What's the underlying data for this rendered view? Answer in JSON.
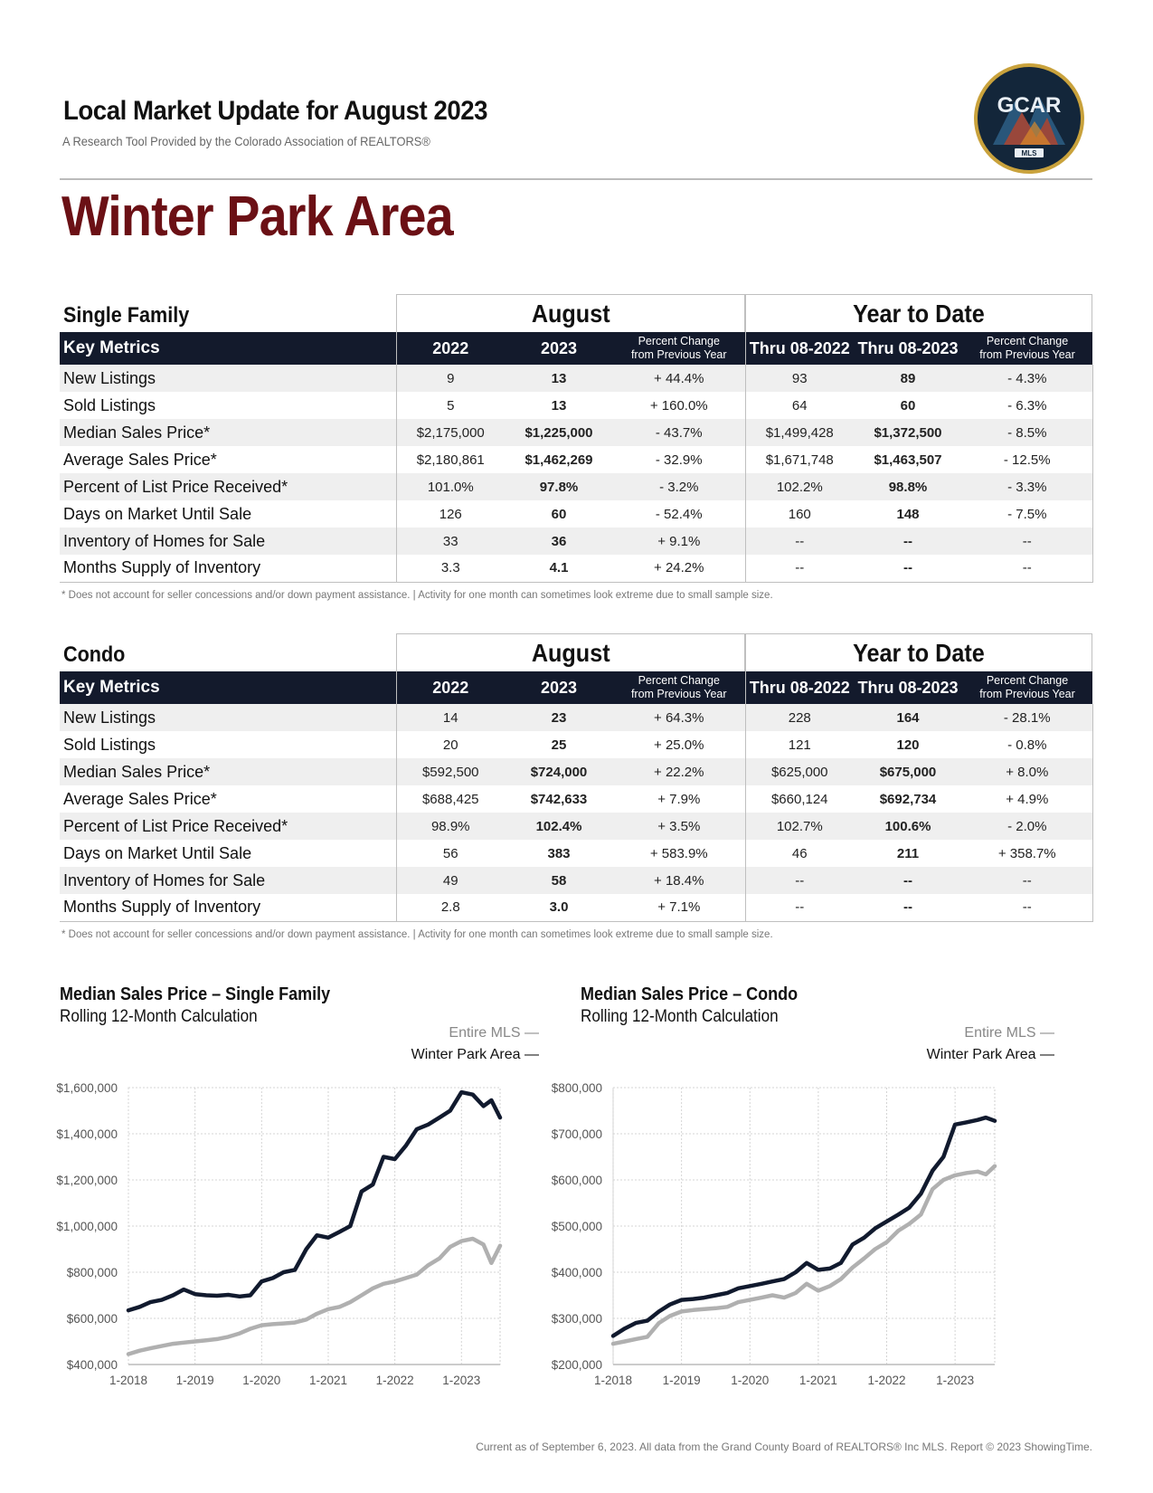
{
  "header": {
    "title": "Local Market Update for August 2023",
    "subtitle": "A Research Tool Provided by the Colorado Association of REALTORS®",
    "logo_text": "GCAR",
    "logo_sub": "MLS"
  },
  "area": "Winter Park Area",
  "columns": {
    "key_metrics": "Key Metrics",
    "y2022": "2022",
    "y2023": "2023",
    "pct_line1": "Percent Change",
    "pct_line2": "from Previous Year",
    "thru2022": "Thru 08-2022",
    "thru2023": "Thru 08-2023"
  },
  "sections": [
    {
      "label": "Single Family",
      "month": "August",
      "ytd": "Year to Date",
      "rows": [
        {
          "metric": "New Listings",
          "m2022": "9",
          "m2023": "13",
          "mpct": "+ 44.4%",
          "y2022": "93",
          "y2023": "89",
          "ypct": "- 4.3%"
        },
        {
          "metric": "Sold Listings",
          "m2022": "5",
          "m2023": "13",
          "mpct": "+ 160.0%",
          "y2022": "64",
          "y2023": "60",
          "ypct": "- 6.3%"
        },
        {
          "metric": "Median Sales Price*",
          "m2022": "$2,175,000",
          "m2023": "$1,225,000",
          "mpct": "- 43.7%",
          "y2022": "$1,499,428",
          "y2023": "$1,372,500",
          "ypct": "- 8.5%"
        },
        {
          "metric": "Average Sales Price*",
          "m2022": "$2,180,861",
          "m2023": "$1,462,269",
          "mpct": "- 32.9%",
          "y2022": "$1,671,748",
          "y2023": "$1,463,507",
          "ypct": "- 12.5%"
        },
        {
          "metric": "Percent of List Price Received*",
          "m2022": "101.0%",
          "m2023": "97.8%",
          "mpct": "- 3.2%",
          "y2022": "102.2%",
          "y2023": "98.8%",
          "ypct": "- 3.3%"
        },
        {
          "metric": "Days on Market Until Sale",
          "m2022": "126",
          "m2023": "60",
          "mpct": "- 52.4%",
          "y2022": "160",
          "y2023": "148",
          "ypct": "- 7.5%"
        },
        {
          "metric": "Inventory of Homes for Sale",
          "m2022": "33",
          "m2023": "36",
          "mpct": "+ 9.1%",
          "y2022": "--",
          "y2023": "--",
          "ypct": "--"
        },
        {
          "metric": "Months Supply of Inventory",
          "m2022": "3.3",
          "m2023": "4.1",
          "mpct": "+ 24.2%",
          "y2022": "--",
          "y2023": "--",
          "ypct": "--"
        }
      ],
      "footnote": "* Does not account for seller concessions and/or down payment assistance.  |  Activity for one month can sometimes look extreme due to small sample size."
    },
    {
      "label": "Condo",
      "month": "August",
      "ytd": "Year to Date",
      "rows": [
        {
          "metric": "New Listings",
          "m2022": "14",
          "m2023": "23",
          "mpct": "+ 64.3%",
          "y2022": "228",
          "y2023": "164",
          "ypct": "- 28.1%"
        },
        {
          "metric": "Sold Listings",
          "m2022": "20",
          "m2023": "25",
          "mpct": "+ 25.0%",
          "y2022": "121",
          "y2023": "120",
          "ypct": "- 0.8%"
        },
        {
          "metric": "Median Sales Price*",
          "m2022": "$592,500",
          "m2023": "$724,000",
          "mpct": "+ 22.2%",
          "y2022": "$625,000",
          "y2023": "$675,000",
          "ypct": "+ 8.0%"
        },
        {
          "metric": "Average Sales Price*",
          "m2022": "$688,425",
          "m2023": "$742,633",
          "mpct": "+ 7.9%",
          "y2022": "$660,124",
          "y2023": "$692,734",
          "ypct": "+ 4.9%"
        },
        {
          "metric": "Percent of List Price Received*",
          "m2022": "98.9%",
          "m2023": "102.4%",
          "mpct": "+ 3.5%",
          "y2022": "102.7%",
          "y2023": "100.6%",
          "ypct": "- 2.0%"
        },
        {
          "metric": "Days on Market Until Sale",
          "m2022": "56",
          "m2023": "383",
          "mpct": "+ 583.9%",
          "y2022": "46",
          "y2023": "211",
          "ypct": "+ 358.7%"
        },
        {
          "metric": "Inventory of Homes for Sale",
          "m2022": "49",
          "m2023": "58",
          "mpct": "+ 18.4%",
          "y2022": "--",
          "y2023": "--",
          "ypct": "--"
        },
        {
          "metric": "Months Supply of Inventory",
          "m2022": "2.8",
          "m2023": "3.0",
          "mpct": "+ 7.1%",
          "y2022": "--",
          "y2023": "--",
          "ypct": "--"
        }
      ],
      "footnote": "* Does not account for seller concessions and/or down payment assistance.  |  Activity for one month can sometimes look extreme due to small sample size."
    }
  ],
  "chart_data": [
    {
      "type": "line",
      "title": "Median Sales Price – Single Family",
      "subtitle": "Rolling 12-Month Calculation",
      "ylim": [
        400000,
        1600000
      ],
      "yticks": [
        400000,
        600000,
        800000,
        1000000,
        1200000,
        1400000,
        1600000
      ],
      "ytick_labels": [
        "$400,000",
        "$600,000",
        "$800,000",
        "$1,000,000",
        "$1,200,000",
        "$1,400,000",
        "$1,600,000"
      ],
      "xticks": [
        "1-2018",
        "1-2019",
        "1-2020",
        "1-2021",
        "1-2022",
        "1-2023"
      ],
      "xlim": [
        2018.0,
        2023.58
      ],
      "grid": true,
      "legend_position": "top-right",
      "series": [
        {
          "name": "Entire MLS",
          "color": "#b0b0b0",
          "points": [
            [
              2018.0,
              445000
            ],
            [
              2018.17,
              460000
            ],
            [
              2018.33,
              470000
            ],
            [
              2018.5,
              480000
            ],
            [
              2018.67,
              490000
            ],
            [
              2018.83,
              495000
            ],
            [
              2019.0,
              500000
            ],
            [
              2019.17,
              505000
            ],
            [
              2019.33,
              510000
            ],
            [
              2019.5,
              520000
            ],
            [
              2019.67,
              535000
            ],
            [
              2019.83,
              555000
            ],
            [
              2020.0,
              570000
            ],
            [
              2020.17,
              575000
            ],
            [
              2020.33,
              578000
            ],
            [
              2020.5,
              582000
            ],
            [
              2020.67,
              595000
            ],
            [
              2020.83,
              620000
            ],
            [
              2021.0,
              640000
            ],
            [
              2021.17,
              650000
            ],
            [
              2021.33,
              670000
            ],
            [
              2021.5,
              700000
            ],
            [
              2021.67,
              730000
            ],
            [
              2021.83,
              750000
            ],
            [
              2022.0,
              760000
            ],
            [
              2022.17,
              775000
            ],
            [
              2022.33,
              790000
            ],
            [
              2022.5,
              830000
            ],
            [
              2022.67,
              860000
            ],
            [
              2022.83,
              910000
            ],
            [
              2023.0,
              935000
            ],
            [
              2023.17,
              945000
            ],
            [
              2023.33,
              920000
            ],
            [
              2023.45,
              840000
            ],
            [
              2023.58,
              915000
            ]
          ]
        },
        {
          "name": "Winter Park Area",
          "color": "#111a2e",
          "points": [
            [
              2018.0,
              635000
            ],
            [
              2018.17,
              650000
            ],
            [
              2018.33,
              670000
            ],
            [
              2018.5,
              680000
            ],
            [
              2018.67,
              700000
            ],
            [
              2018.83,
              725000
            ],
            [
              2019.0,
              705000
            ],
            [
              2019.17,
              700000
            ],
            [
              2019.33,
              698000
            ],
            [
              2019.5,
              702000
            ],
            [
              2019.67,
              695000
            ],
            [
              2019.83,
              700000
            ],
            [
              2020.0,
              760000
            ],
            [
              2020.17,
              775000
            ],
            [
              2020.33,
              800000
            ],
            [
              2020.5,
              810000
            ],
            [
              2020.67,
              900000
            ],
            [
              2020.83,
              960000
            ],
            [
              2021.0,
              950000
            ],
            [
              2021.17,
              975000
            ],
            [
              2021.33,
              1000000
            ],
            [
              2021.5,
              1150000
            ],
            [
              2021.67,
              1180000
            ],
            [
              2021.83,
              1300000
            ],
            [
              2022.0,
              1290000
            ],
            [
              2022.17,
              1350000
            ],
            [
              2022.33,
              1420000
            ],
            [
              2022.5,
              1440000
            ],
            [
              2022.67,
              1470000
            ],
            [
              2022.83,
              1500000
            ],
            [
              2023.0,
              1580000
            ],
            [
              2023.17,
              1570000
            ],
            [
              2023.33,
              1520000
            ],
            [
              2023.45,
              1545000
            ],
            [
              2023.58,
              1470000
            ]
          ]
        }
      ]
    },
    {
      "type": "line",
      "title": "Median Sales Price – Condo",
      "subtitle": "Rolling 12-Month Calculation",
      "ylim": [
        200000,
        800000
      ],
      "yticks": [
        200000,
        300000,
        400000,
        500000,
        600000,
        700000,
        800000
      ],
      "ytick_labels": [
        "$200,000",
        "$300,000",
        "$400,000",
        "$500,000",
        "$600,000",
        "$700,000",
        "$800,000"
      ],
      "xticks": [
        "1-2018",
        "1-2019",
        "1-2020",
        "1-2021",
        "1-2022",
        "1-2023"
      ],
      "xlim": [
        2018.0,
        2023.58
      ],
      "grid": true,
      "legend_position": "top-right",
      "series": [
        {
          "name": "Entire MLS",
          "color": "#b0b0b0",
          "points": [
            [
              2018.0,
              245000
            ],
            [
              2018.17,
              250000
            ],
            [
              2018.33,
              255000
            ],
            [
              2018.5,
              260000
            ],
            [
              2018.67,
              290000
            ],
            [
              2018.83,
              305000
            ],
            [
              2019.0,
              315000
            ],
            [
              2019.17,
              318000
            ],
            [
              2019.33,
              320000
            ],
            [
              2019.5,
              322000
            ],
            [
              2019.67,
              325000
            ],
            [
              2019.83,
              335000
            ],
            [
              2020.0,
              340000
            ],
            [
              2020.17,
              345000
            ],
            [
              2020.33,
              350000
            ],
            [
              2020.5,
              345000
            ],
            [
              2020.67,
              355000
            ],
            [
              2020.83,
              375000
            ],
            [
              2021.0,
              360000
            ],
            [
              2021.17,
              370000
            ],
            [
              2021.33,
              385000
            ],
            [
              2021.5,
              410000
            ],
            [
              2021.67,
              430000
            ],
            [
              2021.83,
              450000
            ],
            [
              2022.0,
              465000
            ],
            [
              2022.17,
              490000
            ],
            [
              2022.33,
              505000
            ],
            [
              2022.5,
              525000
            ],
            [
              2022.67,
              580000
            ],
            [
              2022.83,
              600000
            ],
            [
              2023.0,
              610000
            ],
            [
              2023.17,
              615000
            ],
            [
              2023.33,
              618000
            ],
            [
              2023.45,
              612000
            ],
            [
              2023.58,
              630000
            ]
          ]
        },
        {
          "name": "Winter Park Area",
          "color": "#111a2e",
          "points": [
            [
              2018.0,
              262000
            ],
            [
              2018.17,
              278000
            ],
            [
              2018.33,
              290000
            ],
            [
              2018.5,
              295000
            ],
            [
              2018.67,
              315000
            ],
            [
              2018.83,
              330000
            ],
            [
              2019.0,
              340000
            ],
            [
              2019.17,
              342000
            ],
            [
              2019.33,
              345000
            ],
            [
              2019.5,
              350000
            ],
            [
              2019.67,
              355000
            ],
            [
              2019.83,
              365000
            ],
            [
              2020.0,
              370000
            ],
            [
              2020.17,
              375000
            ],
            [
              2020.33,
              380000
            ],
            [
              2020.5,
              385000
            ],
            [
              2020.67,
              400000
            ],
            [
              2020.83,
              420000
            ],
            [
              2021.0,
              405000
            ],
            [
              2021.17,
              408000
            ],
            [
              2021.33,
              420000
            ],
            [
              2021.5,
              460000
            ],
            [
              2021.67,
              475000
            ],
            [
              2021.83,
              495000
            ],
            [
              2022.0,
              510000
            ],
            [
              2022.17,
              525000
            ],
            [
              2022.33,
              540000
            ],
            [
              2022.5,
              570000
            ],
            [
              2022.67,
              620000
            ],
            [
              2022.83,
              650000
            ],
            [
              2023.0,
              720000
            ],
            [
              2023.17,
              725000
            ],
            [
              2023.33,
              730000
            ],
            [
              2023.45,
              735000
            ],
            [
              2023.58,
              728000
            ]
          ]
        }
      ]
    }
  ],
  "footer": "Current as of September 6, 2023. All data from the Grand County Board of REALTORS® Inc MLS. Report © 2023 ShowingTime."
}
